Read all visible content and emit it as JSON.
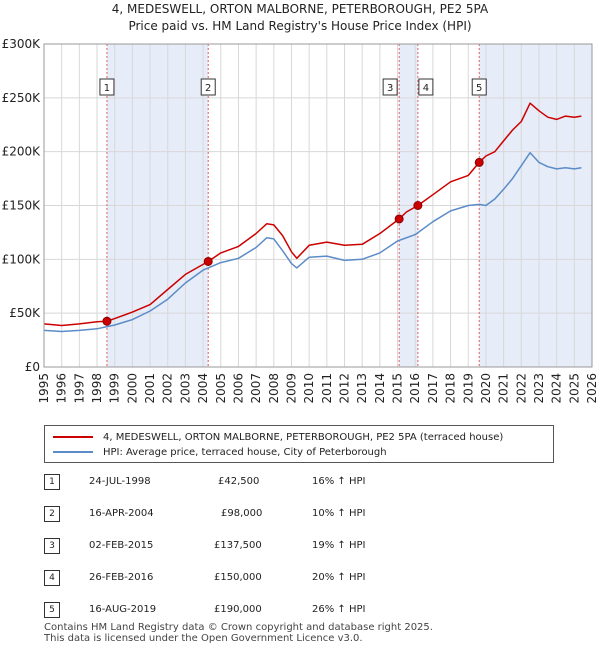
{
  "chart_data": {
    "type": "line",
    "title": "4, MEDESWELL, ORTON MALBORNE, PETERBOROUGH, PE2 5PA",
    "subtitle": "Price paid vs. HM Land Registry's House Price Index (HPI)",
    "xlabel": "",
    "ylabel": "",
    "xlim": [
      1995,
      2026
    ],
    "ylim": [
      0,
      300000
    ],
    "yticks": [
      {
        "value": 0,
        "label": "£0"
      },
      {
        "value": 50000,
        "label": "£50K"
      },
      {
        "value": 100000,
        "label": "£100K"
      },
      {
        "value": 150000,
        "label": "£150K"
      },
      {
        "value": 200000,
        "label": "£200K"
      },
      {
        "value": 250000,
        "label": "£250K"
      },
      {
        "value": 300000,
        "label": "£300K"
      }
    ],
    "xticks": [
      "1995",
      "1996",
      "1997",
      "1998",
      "1999",
      "2000",
      "2001",
      "2002",
      "2003",
      "2004",
      "2005",
      "2006",
      "2007",
      "2008",
      "2009",
      "2010",
      "2011",
      "2012",
      "2013",
      "2014",
      "2015",
      "2016",
      "2017",
      "2018",
      "2019",
      "2020",
      "2021",
      "2022",
      "2023",
      "2024",
      "2025",
      "2026"
    ],
    "grid": true,
    "legend_position": "below",
    "series": [
      {
        "name": "4, MEDESWELL, ORTON MALBORNE, PETERBOROUGH, PE2 5PA (terraced house)",
        "color": "#cc0000",
        "x": [
          1995.0,
          1996.0,
          1997.0,
          1998.0,
          1998.56,
          1999.0,
          2000.0,
          2001.0,
          2002.0,
          2003.0,
          2004.29,
          2005.0,
          2006.0,
          2007.0,
          2007.6,
          2008.0,
          2008.5,
          2009.0,
          2009.3,
          2010.0,
          2011.0,
          2012.0,
          2013.0,
          2014.0,
          2015.09,
          2015.5,
          2016.15,
          2017.0,
          2018.0,
          2019.0,
          2019.62,
          2020.0,
          2020.5,
          2021.0,
          2021.5,
          2022.0,
          2022.5,
          2023.0,
          2023.5,
          2024.0,
          2024.5,
          2025.0,
          2025.4
        ],
        "values": [
          40000,
          38500,
          40000,
          42000,
          42500,
          45000,
          51000,
          58000,
          72000,
          86000,
          98000,
          106000,
          112000,
          124000,
          133000,
          132000,
          122000,
          107000,
          101000,
          113000,
          116000,
          113000,
          114000,
          124000,
          137500,
          144000,
          150000,
          160000,
          172000,
          178000,
          190000,
          196000,
          200000,
          210000,
          220000,
          228000,
          245000,
          238000,
          232000,
          230000,
          233000,
          232000,
          233000
        ]
      },
      {
        "name": "HPI: Average price, terraced house, City of Peterborough",
        "color": "#5b8cc8",
        "x": [
          1995.0,
          1996.0,
          1997.0,
          1998.0,
          1999.0,
          2000.0,
          2001.0,
          2002.0,
          2003.0,
          2004.0,
          2005.0,
          2006.0,
          2007.0,
          2007.6,
          2008.0,
          2008.5,
          2009.0,
          2009.3,
          2010.0,
          2011.0,
          2012.0,
          2013.0,
          2014.0,
          2015.0,
          2016.0,
          2017.0,
          2018.0,
          2019.0,
          2019.62,
          2020.0,
          2020.5,
          2021.0,
          2021.5,
          2022.0,
          2022.5,
          2023.0,
          2023.5,
          2024.0,
          2024.5,
          2025.0,
          2025.4
        ],
        "values": [
          34000,
          33000,
          34000,
          35500,
          39000,
          44000,
          52000,
          63000,
          78000,
          90000,
          97000,
          101000,
          111000,
          120000,
          119000,
          108000,
          96000,
          92000,
          102000,
          103000,
          99000,
          100000,
          106000,
          117000,
          123000,
          135000,
          145000,
          150000,
          151000,
          150000,
          156000,
          165000,
          175000,
          187000,
          199000,
          190000,
          186000,
          184000,
          185000,
          184000,
          185000
        ]
      }
    ],
    "sales": [
      {
        "id": "1",
        "x": 1998.56,
        "price_value": 42500,
        "date": "24-JUL-1998",
        "price": "£42,500",
        "hpi": "16% ↑ HPI"
      },
      {
        "id": "2",
        "x": 2004.29,
        "price_value": 98000,
        "date": "16-APR-2004",
        "price": "£98,000",
        "hpi": "10% ↑ HPI"
      },
      {
        "id": "3",
        "x": 2015.09,
        "price_value": 137500,
        "date": "02-FEB-2015",
        "price": "£137,500",
        "hpi": "19% ↑ HPI"
      },
      {
        "id": "4",
        "x": 2016.15,
        "price_value": 150000,
        "date": "26-FEB-2016",
        "price": "£150,000",
        "hpi": "20% ↑ HPI"
      },
      {
        "id": "5",
        "x": 2019.62,
        "price_value": 190000,
        "date": "16-AUG-2019",
        "price": "£190,000",
        "hpi": "26% ↑ HPI"
      }
    ],
    "shaded_periods": [
      [
        1998.56,
        2004.29
      ],
      [
        2015.09,
        2016.15
      ],
      [
        2019.62,
        2026
      ]
    ]
  },
  "legend": {
    "property": "4, MEDESWELL, ORTON MALBORNE, PETERBOROUGH, PE2 5PA (terraced house)",
    "hpi": "HPI: Average price, terraced house, City of Peterborough",
    "property_color": "#cc0000",
    "hpi_color": "#5b8cc8"
  },
  "footer": {
    "line1": "Contains HM Land Registry data © Crown copyright and database right 2025.",
    "line2": "This data is licensed under the Open Government Licence v3.0."
  }
}
